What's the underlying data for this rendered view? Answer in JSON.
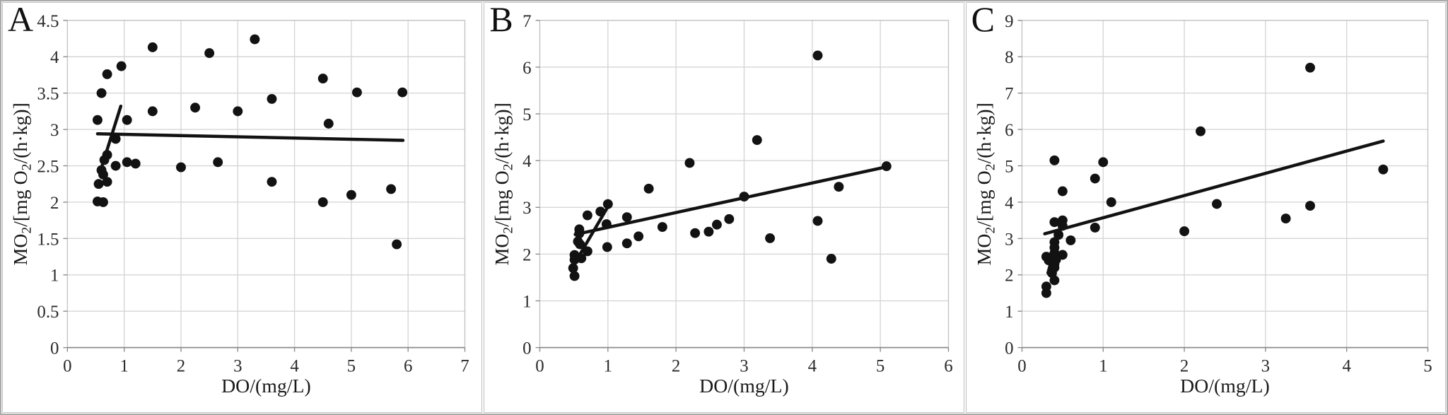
{
  "figure": {
    "background": "#ffffff",
    "outer_border_color": "#a9a9a9",
    "panel_border_color": "#bfbfbf",
    "grid_color": "#d6d6d6",
    "frame_color": "#c4c4c4",
    "axis_color": "#8c8c8c",
    "point_color": "#121212",
    "trend_line_color": "#121212",
    "text_color": "#2b2b2b"
  },
  "ylabel_segments": [
    {
      "text": "MO"
    },
    {
      "text": "2",
      "sub": true
    },
    {
      "text": "/[mg O"
    },
    {
      "text": "2",
      "sub": true
    },
    {
      "text": "/(h·kg)]"
    }
  ],
  "chart_data": [
    {
      "type": "scatter",
      "panel_label": "A",
      "xlabel": "DO/(mg/L)",
      "ylabel": "MO2/[mg O2/(h·kg)]",
      "xlim": [
        0,
        7
      ],
      "xtick_step": 1,
      "ylim": [
        0,
        4.5
      ],
      "ytick_step": 0.5,
      "grid": true,
      "legend": "none",
      "points": [
        [
          0.53,
          2.01
        ],
        [
          0.63,
          2.0
        ],
        [
          0.55,
          2.25
        ],
        [
          0.7,
          2.28
        ],
        [
          0.6,
          2.44
        ],
        [
          0.63,
          2.38
        ],
        [
          0.85,
          2.5
        ],
        [
          1.05,
          2.55
        ],
        [
          1.2,
          2.53
        ],
        [
          0.65,
          2.58
        ],
        [
          0.7,
          2.65
        ],
        [
          0.85,
          2.87
        ],
        [
          0.53,
          3.13
        ],
        [
          1.05,
          3.13
        ],
        [
          0.6,
          3.5
        ],
        [
          0.7,
          3.76
        ],
        [
          0.95,
          3.87
        ],
        [
          1.5,
          4.13
        ],
        [
          1.5,
          3.25
        ],
        [
          2.0,
          2.48
        ],
        [
          2.25,
          3.3
        ],
        [
          2.5,
          4.05
        ],
        [
          2.65,
          2.55
        ],
        [
          3.0,
          3.25
        ],
        [
          3.3,
          4.24
        ],
        [
          3.6,
          3.42
        ],
        [
          3.6,
          2.28
        ],
        [
          4.5,
          3.7
        ],
        [
          4.5,
          2.0
        ],
        [
          4.6,
          3.08
        ],
        [
          5.0,
          2.1
        ],
        [
          5.1,
          3.51
        ],
        [
          5.7,
          2.18
        ],
        [
          5.8,
          1.42
        ],
        [
          5.9,
          3.51
        ]
      ],
      "trend_lines": [
        {
          "from": [
            0.57,
            2.4
          ],
          "to": [
            0.94,
            3.32
          ]
        },
        {
          "from": [
            0.53,
            2.94
          ],
          "to": [
            5.91,
            2.85
          ]
        }
      ]
    },
    {
      "type": "scatter",
      "panel_label": "B",
      "xlabel": "DO/(mg/L)",
      "ylabel": "MO2/[mg O2/(h·kg)]",
      "xlim": [
        0,
        6
      ],
      "xtick_step": 1,
      "ylim": [
        0,
        7
      ],
      "ytick_step": 1,
      "grid": true,
      "legend": "none",
      "points": [
        [
          0.51,
          1.53
        ],
        [
          0.49,
          1.7
        ],
        [
          0.51,
          1.88
        ],
        [
          0.51,
          1.98
        ],
        [
          0.61,
          1.91
        ],
        [
          0.7,
          2.06
        ],
        [
          0.56,
          2.27
        ],
        [
          0.59,
          2.21
        ],
        [
          0.58,
          2.44
        ],
        [
          0.58,
          2.53
        ],
        [
          0.7,
          2.83
        ],
        [
          0.89,
          2.91
        ],
        [
          1.0,
          3.07
        ],
        [
          0.98,
          2.64
        ],
        [
          0.99,
          2.15
        ],
        [
          1.28,
          2.79
        ],
        [
          1.28,
          2.23
        ],
        [
          1.45,
          2.38
        ],
        [
          1.6,
          3.4
        ],
        [
          1.8,
          2.58
        ],
        [
          2.2,
          3.95
        ],
        [
          2.28,
          2.45
        ],
        [
          2.48,
          2.48
        ],
        [
          2.6,
          2.63
        ],
        [
          2.78,
          2.75
        ],
        [
          3.0,
          3.23
        ],
        [
          3.19,
          4.44
        ],
        [
          3.38,
          2.34
        ],
        [
          4.08,
          6.25
        ],
        [
          4.08,
          2.71
        ],
        [
          4.28,
          1.9
        ],
        [
          4.39,
          3.44
        ],
        [
          5.09,
          3.88
        ]
      ],
      "trend_lines": [
        {
          "from": [
            0.48,
            1.72
          ],
          "to": [
            1.03,
            3.09
          ]
        },
        {
          "from": [
            0.52,
            2.42
          ],
          "to": [
            5.07,
            3.86
          ]
        }
      ]
    },
    {
      "type": "scatter",
      "panel_label": "C",
      "xlabel": "DO/(mg/L)",
      "ylabel": "MO2/[mg O2/(h·kg)]",
      "xlim": [
        0,
        5
      ],
      "xtick_step": 1,
      "ylim": [
        0,
        9
      ],
      "ytick_step": 1,
      "grid": true,
      "legend": "none",
      "points": [
        [
          0.3,
          1.5
        ],
        [
          0.3,
          1.68
        ],
        [
          0.37,
          2.05
        ],
        [
          0.4,
          1.85
        ],
        [
          0.4,
          2.2
        ],
        [
          0.4,
          2.3
        ],
        [
          0.33,
          2.4
        ],
        [
          0.3,
          2.5
        ],
        [
          0.42,
          2.42
        ],
        [
          0.4,
          2.6
        ],
        [
          0.4,
          2.75
        ],
        [
          0.4,
          2.9
        ],
        [
          0.5,
          2.55
        ],
        [
          0.6,
          2.95
        ],
        [
          0.45,
          3.1
        ],
        [
          0.4,
          3.45
        ],
        [
          0.5,
          3.5
        ],
        [
          0.5,
          3.35
        ],
        [
          0.9,
          3.3
        ],
        [
          0.9,
          4.65
        ],
        [
          0.4,
          5.15
        ],
        [
          1.0,
          5.1
        ],
        [
          0.5,
          4.3
        ],
        [
          1.1,
          4.0
        ],
        [
          2.0,
          3.2
        ],
        [
          2.2,
          5.95
        ],
        [
          2.4,
          3.95
        ],
        [
          3.25,
          3.55
        ],
        [
          3.55,
          3.9
        ],
        [
          3.55,
          7.7
        ],
        [
          4.45,
          4.9
        ]
      ],
      "trend_lines": [
        {
          "from": [
            0.32,
            2.05
          ],
          "to": [
            0.5,
            3.55
          ]
        },
        {
          "from": [
            0.28,
            3.13
          ],
          "to": [
            4.45,
            5.68
          ]
        }
      ]
    }
  ]
}
